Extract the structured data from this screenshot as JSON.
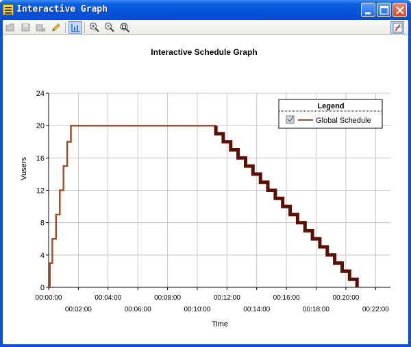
{
  "window": {
    "title": "Interactive Graph",
    "buttons": [
      "minimize",
      "maximize",
      "close"
    ]
  },
  "toolbar": {
    "items": [
      {
        "name": "open-icon"
      },
      {
        "name": "save-icon"
      },
      {
        "name": "delete-icon"
      },
      {
        "name": "edit-pencil-icon"
      },
      {
        "name": "chart-view-icon",
        "active": true
      },
      {
        "name": "zoom-in-icon"
      },
      {
        "name": "zoom-out-icon"
      },
      {
        "name": "zoom-reset-icon"
      },
      {
        "name": "pin-icon"
      }
    ]
  },
  "chart_data": {
    "type": "line",
    "title": "Interactive Schedule Graph",
    "xlabel": "Time",
    "ylabel": "Vusers",
    "xlim_seconds": [
      0,
      1380
    ],
    "ylim": [
      0,
      24
    ],
    "y_ticks": [
      "0",
      "4",
      "8",
      "12",
      "16",
      "20",
      "24"
    ],
    "x_ticks_top": [
      "00:00:00",
      "00:04:00",
      "00:08:00",
      "00:12:00",
      "00:16:00",
      "00:20:00"
    ],
    "x_ticks_bottom": [
      "00:02:00",
      "00:06:00",
      "00:10:00",
      "00:14:00",
      "00:18:00",
      "00:22:00"
    ],
    "grid": true,
    "legend": {
      "title": "Legend",
      "position": "top-right",
      "entries": [
        "Global Schedule"
      ],
      "checked": true
    },
    "colors": {
      "ramp_up": "#a0522d",
      "ramp_down": "#5a1005"
    },
    "series": [
      {
        "name": "Global Schedule",
        "ramp_up": [
          [
            0,
            0
          ],
          [
            5,
            0
          ],
          [
            5,
            3
          ],
          [
            15,
            3
          ],
          [
            15,
            6
          ],
          [
            30,
            6
          ],
          [
            30,
            9
          ],
          [
            45,
            9
          ],
          [
            45,
            12
          ],
          [
            60,
            12
          ],
          [
            60,
            15
          ],
          [
            75,
            15
          ],
          [
            75,
            18
          ],
          [
            90,
            18
          ],
          [
            90,
            20
          ],
          [
            675,
            20
          ]
        ],
        "ramp_down": [
          [
            675,
            20
          ],
          [
            675,
            19
          ],
          [
            705,
            19
          ],
          [
            705,
            18
          ],
          [
            735,
            18
          ],
          [
            735,
            17
          ],
          [
            765,
            17
          ],
          [
            765,
            16
          ],
          [
            795,
            16
          ],
          [
            795,
            15
          ],
          [
            825,
            15
          ],
          [
            825,
            14
          ],
          [
            855,
            14
          ],
          [
            855,
            13
          ],
          [
            885,
            13
          ],
          [
            885,
            12
          ],
          [
            915,
            12
          ],
          [
            915,
            11
          ],
          [
            945,
            11
          ],
          [
            945,
            10
          ],
          [
            975,
            10
          ],
          [
            975,
            9
          ],
          [
            1005,
            9
          ],
          [
            1005,
            8
          ],
          [
            1035,
            8
          ],
          [
            1035,
            7
          ],
          [
            1065,
            7
          ],
          [
            1065,
            6
          ],
          [
            1095,
            6
          ],
          [
            1095,
            5
          ],
          [
            1125,
            5
          ],
          [
            1125,
            4
          ],
          [
            1155,
            4
          ],
          [
            1155,
            3
          ],
          [
            1185,
            3
          ],
          [
            1185,
            2
          ],
          [
            1215,
            2
          ],
          [
            1215,
            1
          ],
          [
            1245,
            1
          ],
          [
            1245,
            0
          ]
        ]
      }
    ]
  }
}
